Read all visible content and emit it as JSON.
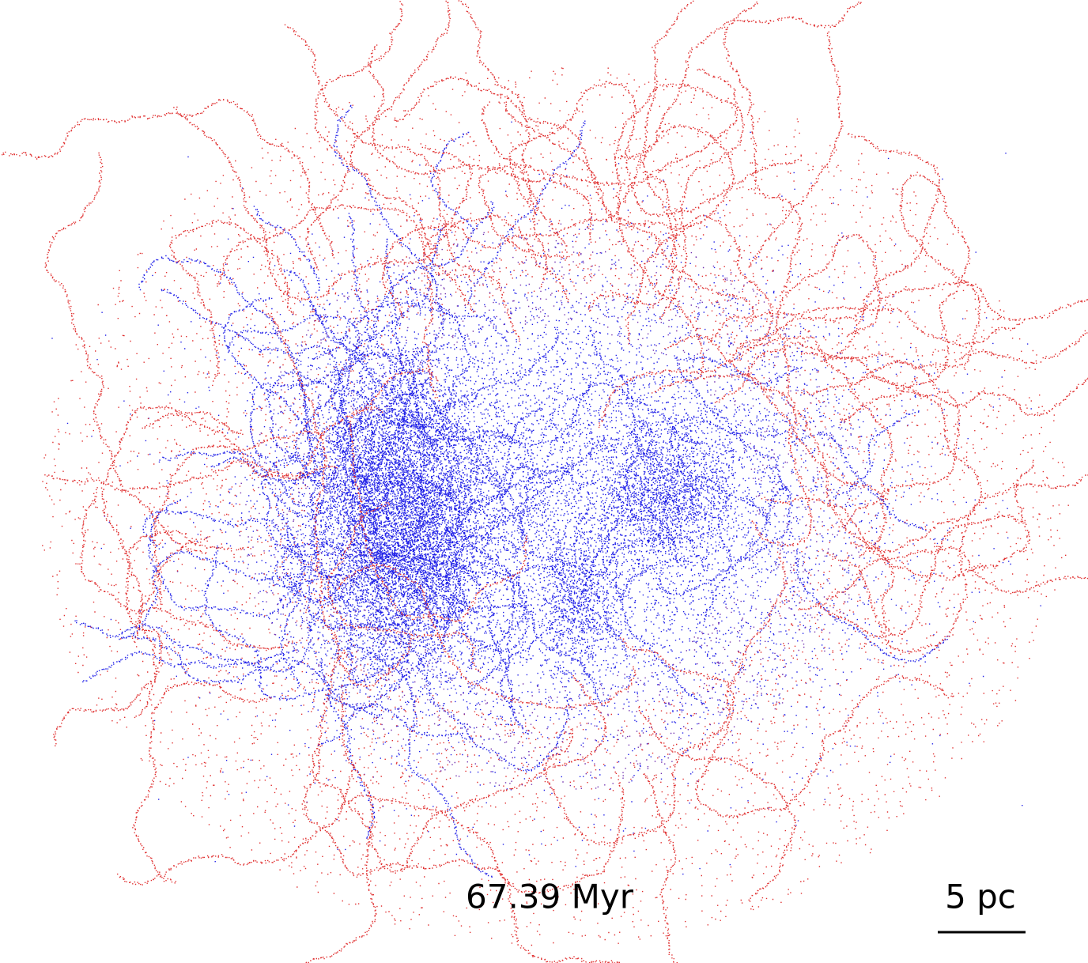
{
  "caption": {
    "time": "67.39 Myr",
    "scale_bar": "5 pc"
  }
}
